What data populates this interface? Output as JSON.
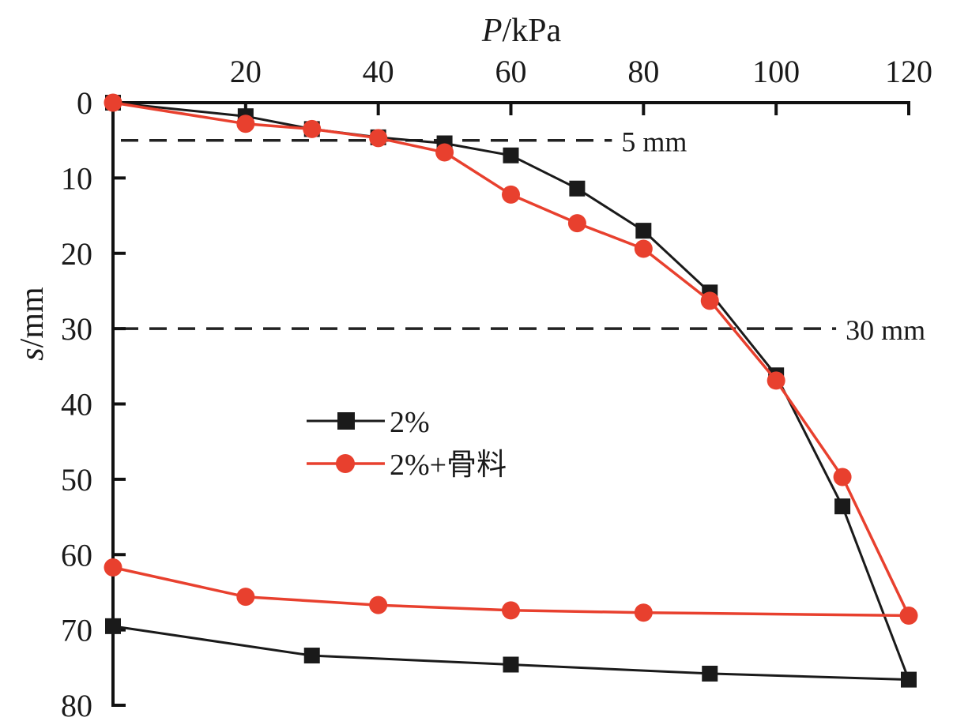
{
  "chart_data": {
    "type": "line",
    "title": "",
    "xlabel": "P/kPa",
    "xlabel_italic_part": "P",
    "xlabel_rest": "/kPa",
    "ylabel": "s/mm",
    "ylabel_italic_part": "s",
    "ylabel_rest": "/mm",
    "x_axis_position": "top",
    "y_axis_inverted": true,
    "xlim": [
      0,
      120
    ],
    "ylim": [
      0,
      80
    ],
    "x_ticks": [
      20,
      40,
      60,
      80,
      100,
      120
    ],
    "x_tick_labels": [
      "20",
      "40",
      "60",
      "80",
      "100",
      "120"
    ],
    "y_ticks": [
      0,
      10,
      20,
      30,
      40,
      50,
      60,
      70,
      80
    ],
    "y_tick_labels": [
      "0",
      "10",
      "20",
      "30",
      "40",
      "50",
      "60",
      "70",
      "80"
    ],
    "grid": false,
    "legend_position": "center-left",
    "reference_lines": [
      {
        "y": 5,
        "label": "5 mm",
        "x_end": 75
      },
      {
        "y": 30,
        "label": "30 mm",
        "x_end": 110
      }
    ],
    "series": [
      {
        "name": "2%",
        "color": "#1a1a1a",
        "marker": "square",
        "x": [
          0,
          20,
          30,
          40,
          50,
          60,
          70,
          80,
          90,
          100,
          110,
          120,
          90,
          60,
          30,
          0
        ],
        "y": [
          0,
          1.8,
          3.5,
          4.6,
          5.4,
          7.0,
          11.4,
          17.0,
          25.2,
          36.2,
          53.6,
          76.6,
          75.8,
          74.6,
          73.4,
          69.5
        ]
      },
      {
        "name": "2%+骨料",
        "color": "#e8402e",
        "marker": "circle",
        "x": [
          0,
          20,
          30,
          40,
          50,
          60,
          70,
          80,
          90,
          100,
          110,
          120,
          80,
          60,
          40,
          20,
          0
        ],
        "y": [
          0,
          2.8,
          3.5,
          4.7,
          6.6,
          12.2,
          16.0,
          19.4,
          26.3,
          36.9,
          49.7,
          68.1,
          67.7,
          67.4,
          66.7,
          65.6,
          61.7
        ]
      }
    ]
  }
}
